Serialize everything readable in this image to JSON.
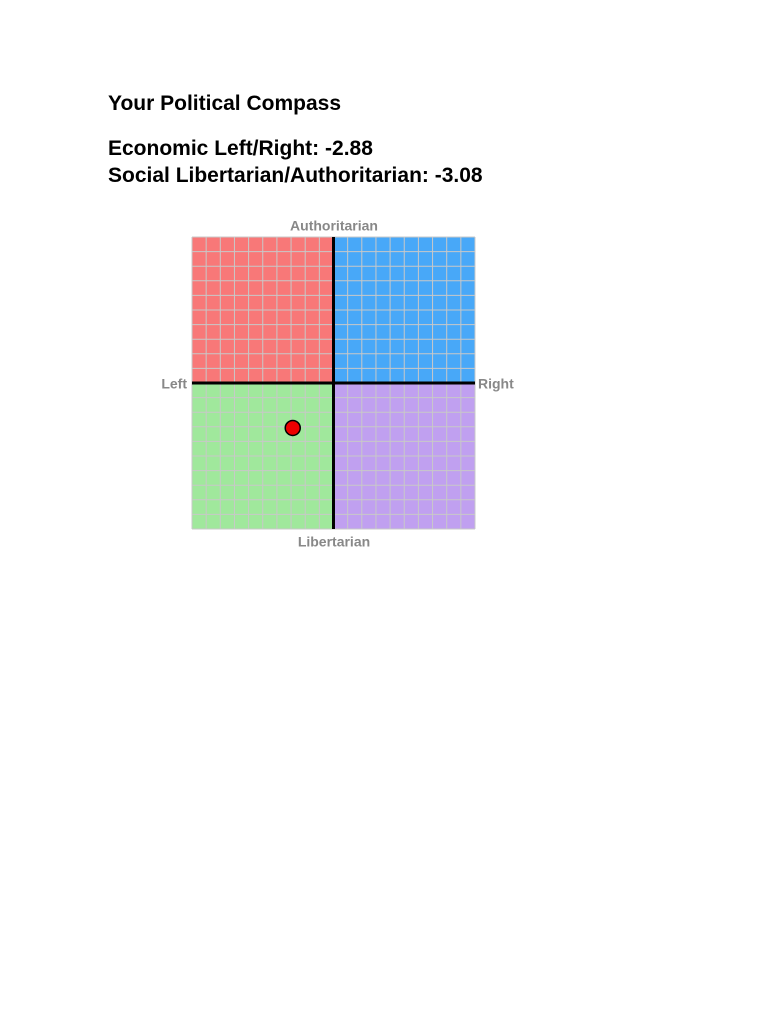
{
  "header": {
    "title": "Your Political Compass"
  },
  "chart_data": {
    "type": "scatter",
    "x_title": "Economic Left/Right:",
    "y_title": "Social Libertarian/Authoritarian:",
    "x": [
      -2.88
    ],
    "values": [
      -3.08
    ],
    "color": "#ee0000",
    "labels": {
      "top": "Authoritarian",
      "bottom": "Libertarian",
      "left": "Left",
      "right": "Right"
    },
    "xlim": [
      -10,
      10
    ],
    "ylim": [
      -10,
      10
    ],
    "grid": true,
    "quadrant_colors": {
      "top_left": "#f87878",
      "top_right": "#48a8f8",
      "bottom_left": "#a0e89c",
      "bottom_right": "#c0a0f0"
    }
  }
}
